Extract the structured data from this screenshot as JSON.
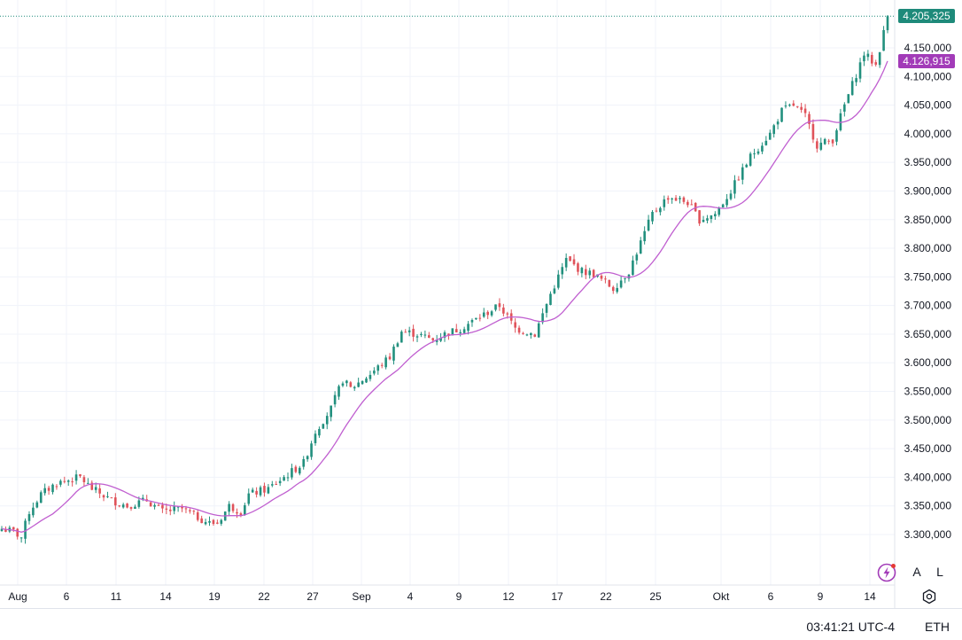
{
  "chart_data": {
    "type": "candlestick",
    "instrument": "ETH",
    "y_ticks": [
      3300000,
      3350000,
      3400000,
      3450000,
      3500000,
      3550000,
      3600000,
      3650000,
      3700000,
      3750000,
      3800000,
      3850000,
      3900000,
      3950000,
      4000000,
      4050000,
      4100000,
      4150000
    ],
    "y_tick_labels": [
      "3.300,000",
      "3.350,000",
      "3.400,000",
      "3.450,000",
      "3.500,000",
      "3.550,000",
      "3.600,000",
      "3.650,000",
      "3.700,000",
      "3.750,000",
      "3.800,000",
      "3.850,000",
      "3.900,000",
      "3.950,000",
      "4.000,000",
      "4.050,000",
      "4.100,000",
      "4.150,000"
    ],
    "ylim": [
      3250000,
      4215000
    ],
    "x_tick_labels": [
      "Aug",
      "6",
      "11",
      "14",
      "19",
      "22",
      "27",
      "Sep",
      "4",
      "9",
      "12",
      "17",
      "22",
      "25",
      "Okt",
      "6",
      "9",
      "14"
    ],
    "price_path": [
      [
        0,
        3310000
      ],
      [
        3,
        3305000
      ],
      [
        5,
        3295000
      ],
      [
        7,
        3340000
      ],
      [
        10,
        3370000
      ],
      [
        14,
        3390000
      ],
      [
        17,
        3395000
      ],
      [
        20,
        3400000
      ],
      [
        23,
        3380000
      ],
      [
        28,
        3360000
      ],
      [
        32,
        3350000
      ],
      [
        37,
        3360000
      ],
      [
        41,
        3340000
      ],
      [
        46,
        3345000
      ],
      [
        50,
        3330000
      ],
      [
        53,
        3320000
      ],
      [
        55,
        3320000
      ],
      [
        58,
        3350000
      ],
      [
        61,
        3340000
      ],
      [
        63,
        3370000
      ],
      [
        68,
        3380000
      ],
      [
        72,
        3400000
      ],
      [
        77,
        3425000
      ],
      [
        80,
        3480000
      ],
      [
        84,
        3520000
      ],
      [
        87,
        3570000
      ],
      [
        89,
        3555000
      ],
      [
        94,
        3580000
      ],
      [
        99,
        3610000
      ],
      [
        102,
        3655000
      ],
      [
        106,
        3650000
      ],
      [
        110,
        3640000
      ],
      [
        113,
        3650000
      ],
      [
        117,
        3660000
      ],
      [
        122,
        3680000
      ],
      [
        127,
        3700000
      ],
      [
        131,
        3660000
      ],
      [
        136,
        3650000
      ],
      [
        140,
        3720000
      ],
      [
        144,
        3780000
      ],
      [
        148,
        3760000
      ],
      [
        151,
        3755000
      ],
      [
        154,
        3740000
      ],
      [
        156,
        3730000
      ],
      [
        160,
        3760000
      ],
      [
        166,
        3860000
      ],
      [
        170,
        3890000
      ],
      [
        175,
        3880000
      ],
      [
        178,
        3850000
      ],
      [
        182,
        3860000
      ],
      [
        186,
        3900000
      ],
      [
        191,
        3960000
      ],
      [
        196,
        4000000
      ],
      [
        199,
        4040000
      ],
      [
        202,
        4050000
      ],
      [
        205,
        4030000
      ],
      [
        208,
        3980000
      ],
      [
        212,
        3990000
      ],
      [
        215,
        4050000
      ],
      [
        220,
        4140000
      ],
      [
        223,
        4120000
      ],
      [
        226,
        4205000
      ]
    ],
    "moving_average": {
      "color": "#c05fd0",
      "last_value": 4126915,
      "last_label": "4.126,915"
    },
    "last_price": {
      "value": 4205325,
      "label": "4.205,325",
      "color": "#1e8a7a"
    },
    "up_color": "#22907e",
    "down_color": "#e0525a",
    "grid": true
  },
  "footer": {
    "clock": "03:41:21 UTC-4",
    "symbol": "ETH"
  },
  "controls": {
    "auto_label": "A",
    "log_label": "L"
  },
  "icons": {
    "flash": "lightning-icon",
    "settings": "gear-icon"
  }
}
